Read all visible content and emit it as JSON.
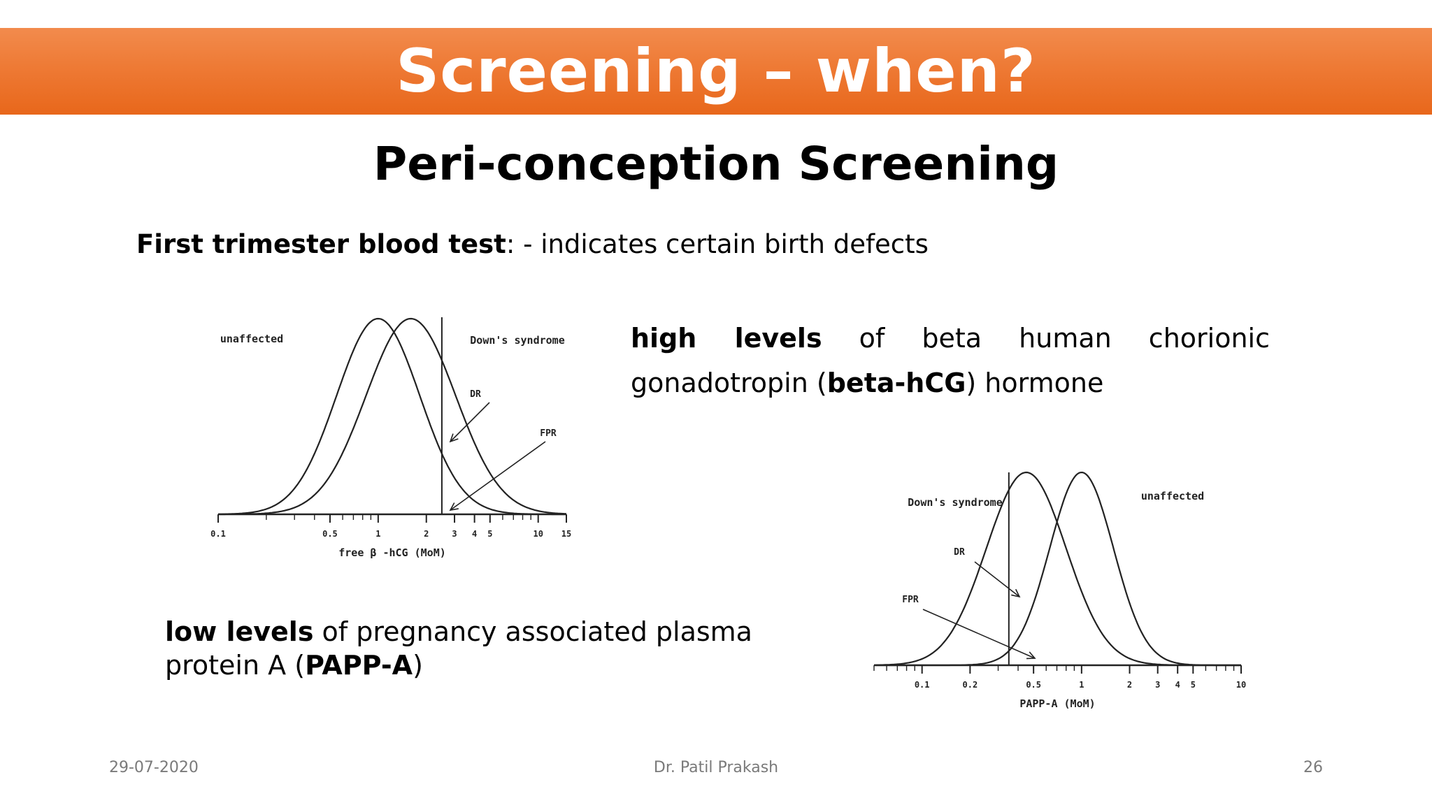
{
  "slide": {
    "title": "Screening – when?",
    "subtitle": "Peri-conception Screening",
    "intro": {
      "bold": "First trimester blood test",
      "rest": ":  - indicates certain birth defects"
    },
    "high": {
      "b1": "high levels",
      "t1": " of beta human chorionic gonadotropin (",
      "b2": "beta-hCG",
      "t2": ") hormone"
    },
    "low": {
      "b1": "low levels",
      "t1": " of pregnancy associated plasma protein A (",
      "b2": "PAPP-A",
      "t2": ")"
    },
    "footer": {
      "date": "29-07-2020",
      "author": "Dr. Patil Prakash",
      "page": "26"
    }
  },
  "colors": {
    "title_bar": "#ee7a35",
    "title_text": "#ffffff",
    "curve": "#222222"
  },
  "chart_data": [
    {
      "type": "line",
      "xlabel": "free β -hCG (MoM)",
      "xscale": "log",
      "xlim": [
        0.1,
        15
      ],
      "tick_labels": [
        "0.1",
        "0.5",
        "1",
        "2",
        "3",
        "4",
        "5",
        "10",
        "15"
      ],
      "tick_values": [
        0.1,
        0.5,
        1,
        2,
        3,
        4,
        5,
        10,
        15
      ],
      "cutoff": 2.5,
      "series": [
        {
          "name": "unaffected",
          "median": 1.0,
          "sd_log10": 0.26
        },
        {
          "name": "Down's syndrome",
          "median": 1.6,
          "sd_log10": 0.28
        }
      ],
      "annotations": [
        "DR",
        "FPR"
      ]
    },
    {
      "type": "line",
      "xlabel": "PAPP-A (MoM)",
      "xscale": "log",
      "xlim": [
        0.05,
        10
      ],
      "tick_labels": [
        "0.1",
        "0.2",
        "0.5",
        "1",
        "2",
        "3",
        "4",
        "5",
        "10"
      ],
      "tick_values": [
        0.1,
        0.2,
        0.5,
        1,
        2,
        3,
        4,
        5,
        10
      ],
      "cutoff": 0.35,
      "series": [
        {
          "name": "unaffected",
          "median": 1.0,
          "sd_log10": 0.2
        },
        {
          "name": "Down's syndrome",
          "median": 0.45,
          "sd_log10": 0.25
        }
      ],
      "annotations": [
        "DR",
        "FPR"
      ]
    }
  ]
}
